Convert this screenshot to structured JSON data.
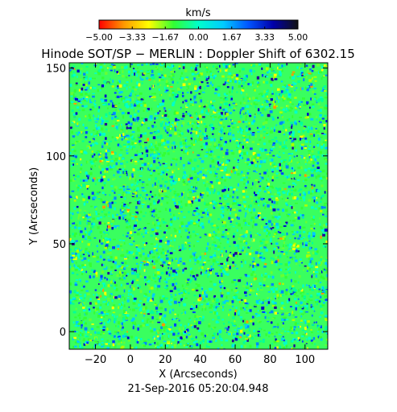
{
  "chart_data": {
    "type": "heatmap",
    "title": "Hinode SOT/SP − MERLIN : Doppler Shift of 6302.15",
    "xlabel": "X (Arcseconds)",
    "ylabel": "Y (Arcseconds)",
    "xlim": [
      -35,
      113
    ],
    "ylim": [
      -10,
      153
    ],
    "x_ticks": [
      -20,
      0,
      20,
      40,
      60,
      80,
      100
    ],
    "y_ticks": [
      0,
      50,
      100,
      150
    ],
    "x_tick_labels": [
      "−20",
      "0",
      "20",
      "40",
      "60",
      "80",
      "100"
    ],
    "y_tick_labels": [
      "0",
      "50",
      "100",
      "150"
    ],
    "timestamp": "21-Sep-2016 05:20:04.948",
    "colorbar": {
      "label": "km/s",
      "range": [
        -5.0,
        5.0
      ],
      "ticks": [
        -5.0,
        -3.33,
        -1.67,
        0.0,
        1.67,
        3.33,
        5.0
      ],
      "tick_labels": [
        "−5.00",
        "−3.33",
        "−1.67",
        "0.00",
        "1.67",
        "3.33",
        "5.00"
      ],
      "colormap": [
        "#ff0000",
        "#ff9900",
        "#ffff00",
        "#33ff33",
        "#00ffcc",
        "#00ccff",
        "#0055ff",
        "#0000aa",
        "#111111"
      ]
    },
    "background_color": "#39ff5f",
    "grid": false
  }
}
